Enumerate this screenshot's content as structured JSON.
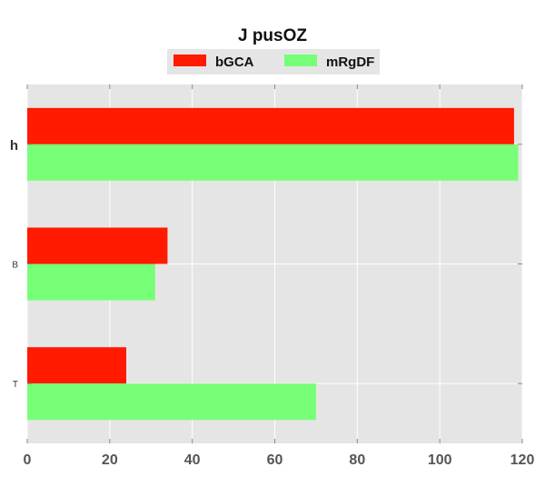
{
  "chart_data": {
    "type": "bar",
    "orientation": "horizontal",
    "title": "J pusOZ",
    "xlabel": "",
    "ylabel": "",
    "categories": [
      "h",
      "B",
      "T"
    ],
    "series": [
      {
        "name": "bGCA",
        "color": "#ff1a00",
        "values": [
          118,
          34,
          24
        ]
      },
      {
        "name": "mRgDF",
        "color": "#77ff77",
        "values": [
          119,
          31,
          70
        ]
      }
    ],
    "xlim": [
      0,
      120
    ],
    "xticks": [
      0,
      20,
      40,
      60,
      80,
      100,
      120
    ],
    "grid": true,
    "legend_position": "top-center",
    "background_color": "#e5e5e5"
  }
}
